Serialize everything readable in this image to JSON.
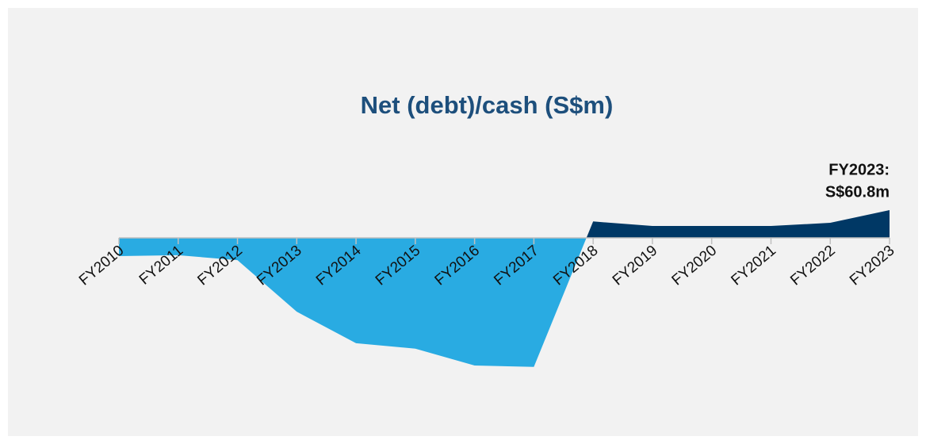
{
  "chart_data": {
    "type": "area",
    "title": "Net (debt)/cash (S$m)",
    "categories": [
      "FY2010",
      "FY2011",
      "FY2012",
      "FY2013",
      "FY2014",
      "FY2015",
      "FY2016",
      "FY2017",
      "FY2018",
      "FY2019",
      "FY2020",
      "FY2021",
      "FY2022",
      "FY2023"
    ],
    "values": [
      -40,
      -38,
      -49,
      -162,
      -231,
      -243,
      -280,
      -283,
      36,
      26,
      26,
      26,
      33,
      60.8
    ],
    "color": "#003865",
    "negative_color": "#29abe2",
    "ylim": [
      -400,
      200
    ],
    "annotation": [
      "FY2023:",
      "S$60.8m"
    ]
  }
}
